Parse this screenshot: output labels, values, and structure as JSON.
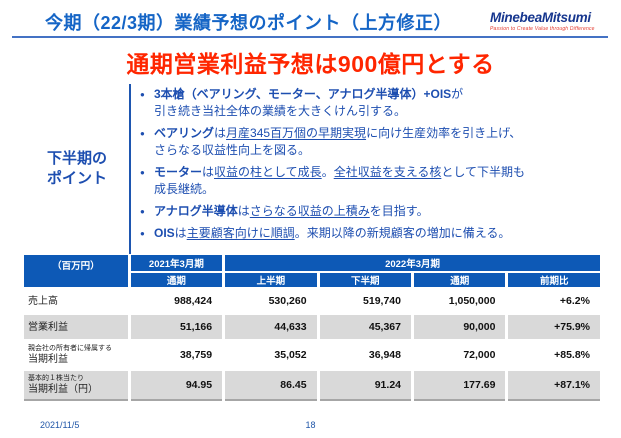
{
  "page": {
    "title": "今期（22/3期）業績予想のポイント（上方修正）",
    "footer_date": "2021/11/5",
    "footer_page": "18"
  },
  "logo": {
    "brand": "MinebeaMitsumi",
    "tagline": "Passion to Create Value through Difference"
  },
  "headline": "通期営業利益予想は900億円とする",
  "colors": {
    "title_blue": "#1565c6",
    "bullet_blue": "#1d4eb0",
    "table_header_blue": "#0d59b6",
    "headline_red": "#ff2600",
    "shade_gray": "#d9d9d9"
  },
  "points": {
    "label_line1": "下半期の",
    "label_line2": "ポイント",
    "bullets": [
      {
        "lines": [
          [
            {
              "t": "3本槍（ベアリング、モーター、アナログ半導体）+OIS",
              "b": true
            },
            {
              "t": "が"
            }
          ],
          [
            {
              "t": "引き続き当社全体の業績を大きくけん引する。"
            }
          ]
        ]
      },
      {
        "lines": [
          [
            {
              "t": "ベアリング",
              "b": true
            },
            {
              "t": "は"
            },
            {
              "t": "月産345百万個の早期実現",
              "u": true
            },
            {
              "t": "に向け生産効率を引き上げ、"
            }
          ],
          [
            {
              "t": "さらなる収益性向上を図る。"
            }
          ]
        ]
      },
      {
        "lines": [
          [
            {
              "t": "モーター",
              "b": true
            },
            {
              "t": "は"
            },
            {
              "t": "収益の柱として成長",
              "u": true
            },
            {
              "t": "。"
            },
            {
              "t": "全社収益を支える核",
              "u": true
            },
            {
              "t": "として下半期も"
            }
          ],
          [
            {
              "t": "成長継続。"
            }
          ]
        ]
      },
      {
        "lines": [
          [
            {
              "t": "アナログ半導体",
              "b": true
            },
            {
              "t": "は"
            },
            {
              "t": "さらなる収益の上積み",
              "u": true
            },
            {
              "t": "を目指す。"
            }
          ]
        ]
      },
      {
        "lines": [
          [
            {
              "t": "OIS",
              "b": true
            },
            {
              "t": "は"
            },
            {
              "t": "主要顧客向けに順調",
              "u": true
            },
            {
              "t": "。来期以降の新規顧客の増加に備える。"
            }
          ]
        ]
      }
    ]
  },
  "table": {
    "unit_label": "（百万円）",
    "col_group_2021": "2021年3月期",
    "col_group_2022": "2022年3月期",
    "sub_headers": [
      "通期",
      "上半期",
      "下半期",
      "通期",
      "前期比"
    ],
    "rows": [
      {
        "label": "売上高",
        "label_small": "",
        "shade": false,
        "values": [
          "988,424",
          "530,260",
          "519,740",
          "1,050,000",
          "+6.2%"
        ]
      },
      {
        "label": "営業利益",
        "label_small": "",
        "shade": true,
        "values": [
          "51,166",
          "44,633",
          "45,367",
          "90,000",
          "+75.9%"
        ]
      },
      {
        "label": "当期利益",
        "label_small": "親会社の所有者に帰属する",
        "shade": false,
        "values": [
          "38,759",
          "35,052",
          "36,948",
          "72,000",
          "+85.8%"
        ]
      },
      {
        "label": "当期利益（円）",
        "label_small": "基本的１株当たり",
        "shade": true,
        "values": [
          "94.95",
          "86.45",
          "91.24",
          "177.69",
          "+87.1%"
        ]
      }
    ]
  }
}
